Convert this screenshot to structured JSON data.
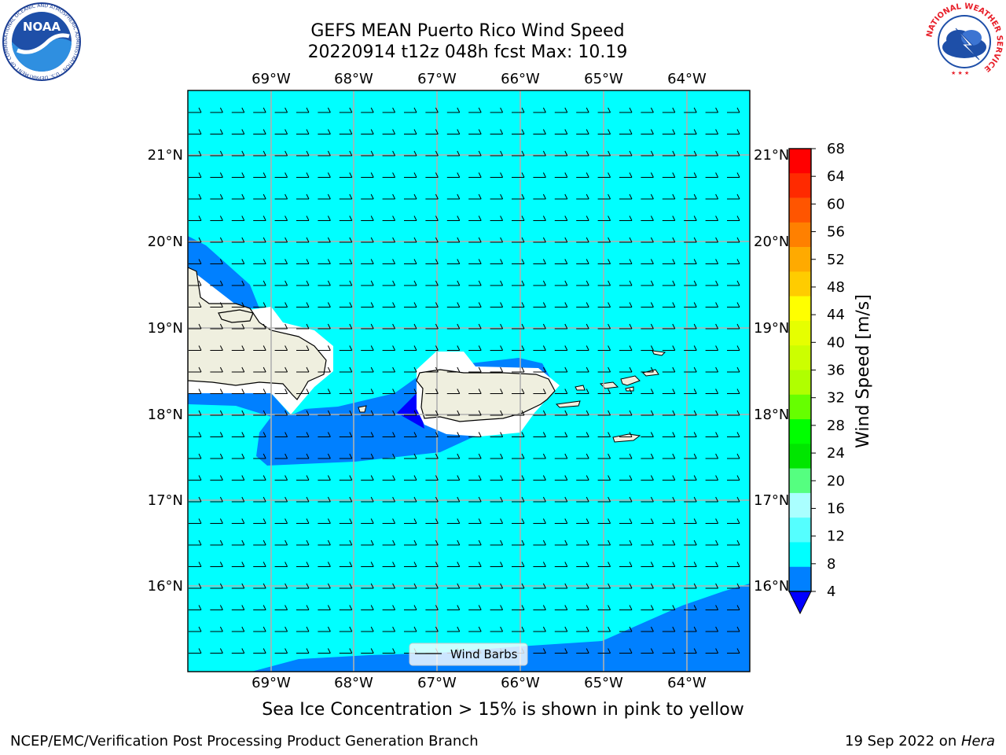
{
  "header": {
    "title_line1": "GEFS MEAN Puerto Rico Wind Speed",
    "title_line2": "20220914 t12z 048h fcst   Max: 10.19"
  },
  "map": {
    "lon_labels": [
      "69°W",
      "68°W",
      "67°W",
      "66°W",
      "65°W",
      "64°W"
    ],
    "lat_labels": [
      "21°N",
      "20°N",
      "19°N",
      "18°N",
      "17°N",
      "16°N"
    ],
    "legend_label": "Wind Barbs",
    "background_color": "#00ffff"
  },
  "colorbar": {
    "label": "Wind Speed [m/s]",
    "ticks": [
      "68",
      "64",
      "60",
      "56",
      "52",
      "48",
      "44",
      "40",
      "36",
      "32",
      "28",
      "24",
      "20",
      "16",
      "12",
      "8",
      "4"
    ],
    "colors": [
      "#ff0000",
      "#ff2a00",
      "#ff5500",
      "#ff8000",
      "#ffaa00",
      "#ffcc00",
      "#ffff00",
      "#e6ff00",
      "#ccff00",
      "#b0ff00",
      "#66ff00",
      "#00ff00",
      "#00e600",
      "#55ff80",
      "#aaffff",
      "#55ffff",
      "#00ffff",
      "#0080ff"
    ],
    "extend_color": "#0000ff"
  },
  "logos": {
    "noaa_text": "NOAA",
    "noaa_ring": "NATIONAL OCEANIC AND ATMOSPHERIC ADMINISTRATION · U.S. DEPARTMENT OF COMMERCE",
    "nws_ring": "NATIONAL WEATHER SERVICE"
  },
  "footer": {
    "subtitle": "Sea Ice Concentration > 15% is shown in pink to yellow",
    "left": "NCEP/EMC/Verification Post Processing Product Generation Branch",
    "right_date": "19 Sep 2022 on ",
    "right_system": "Hera"
  }
}
